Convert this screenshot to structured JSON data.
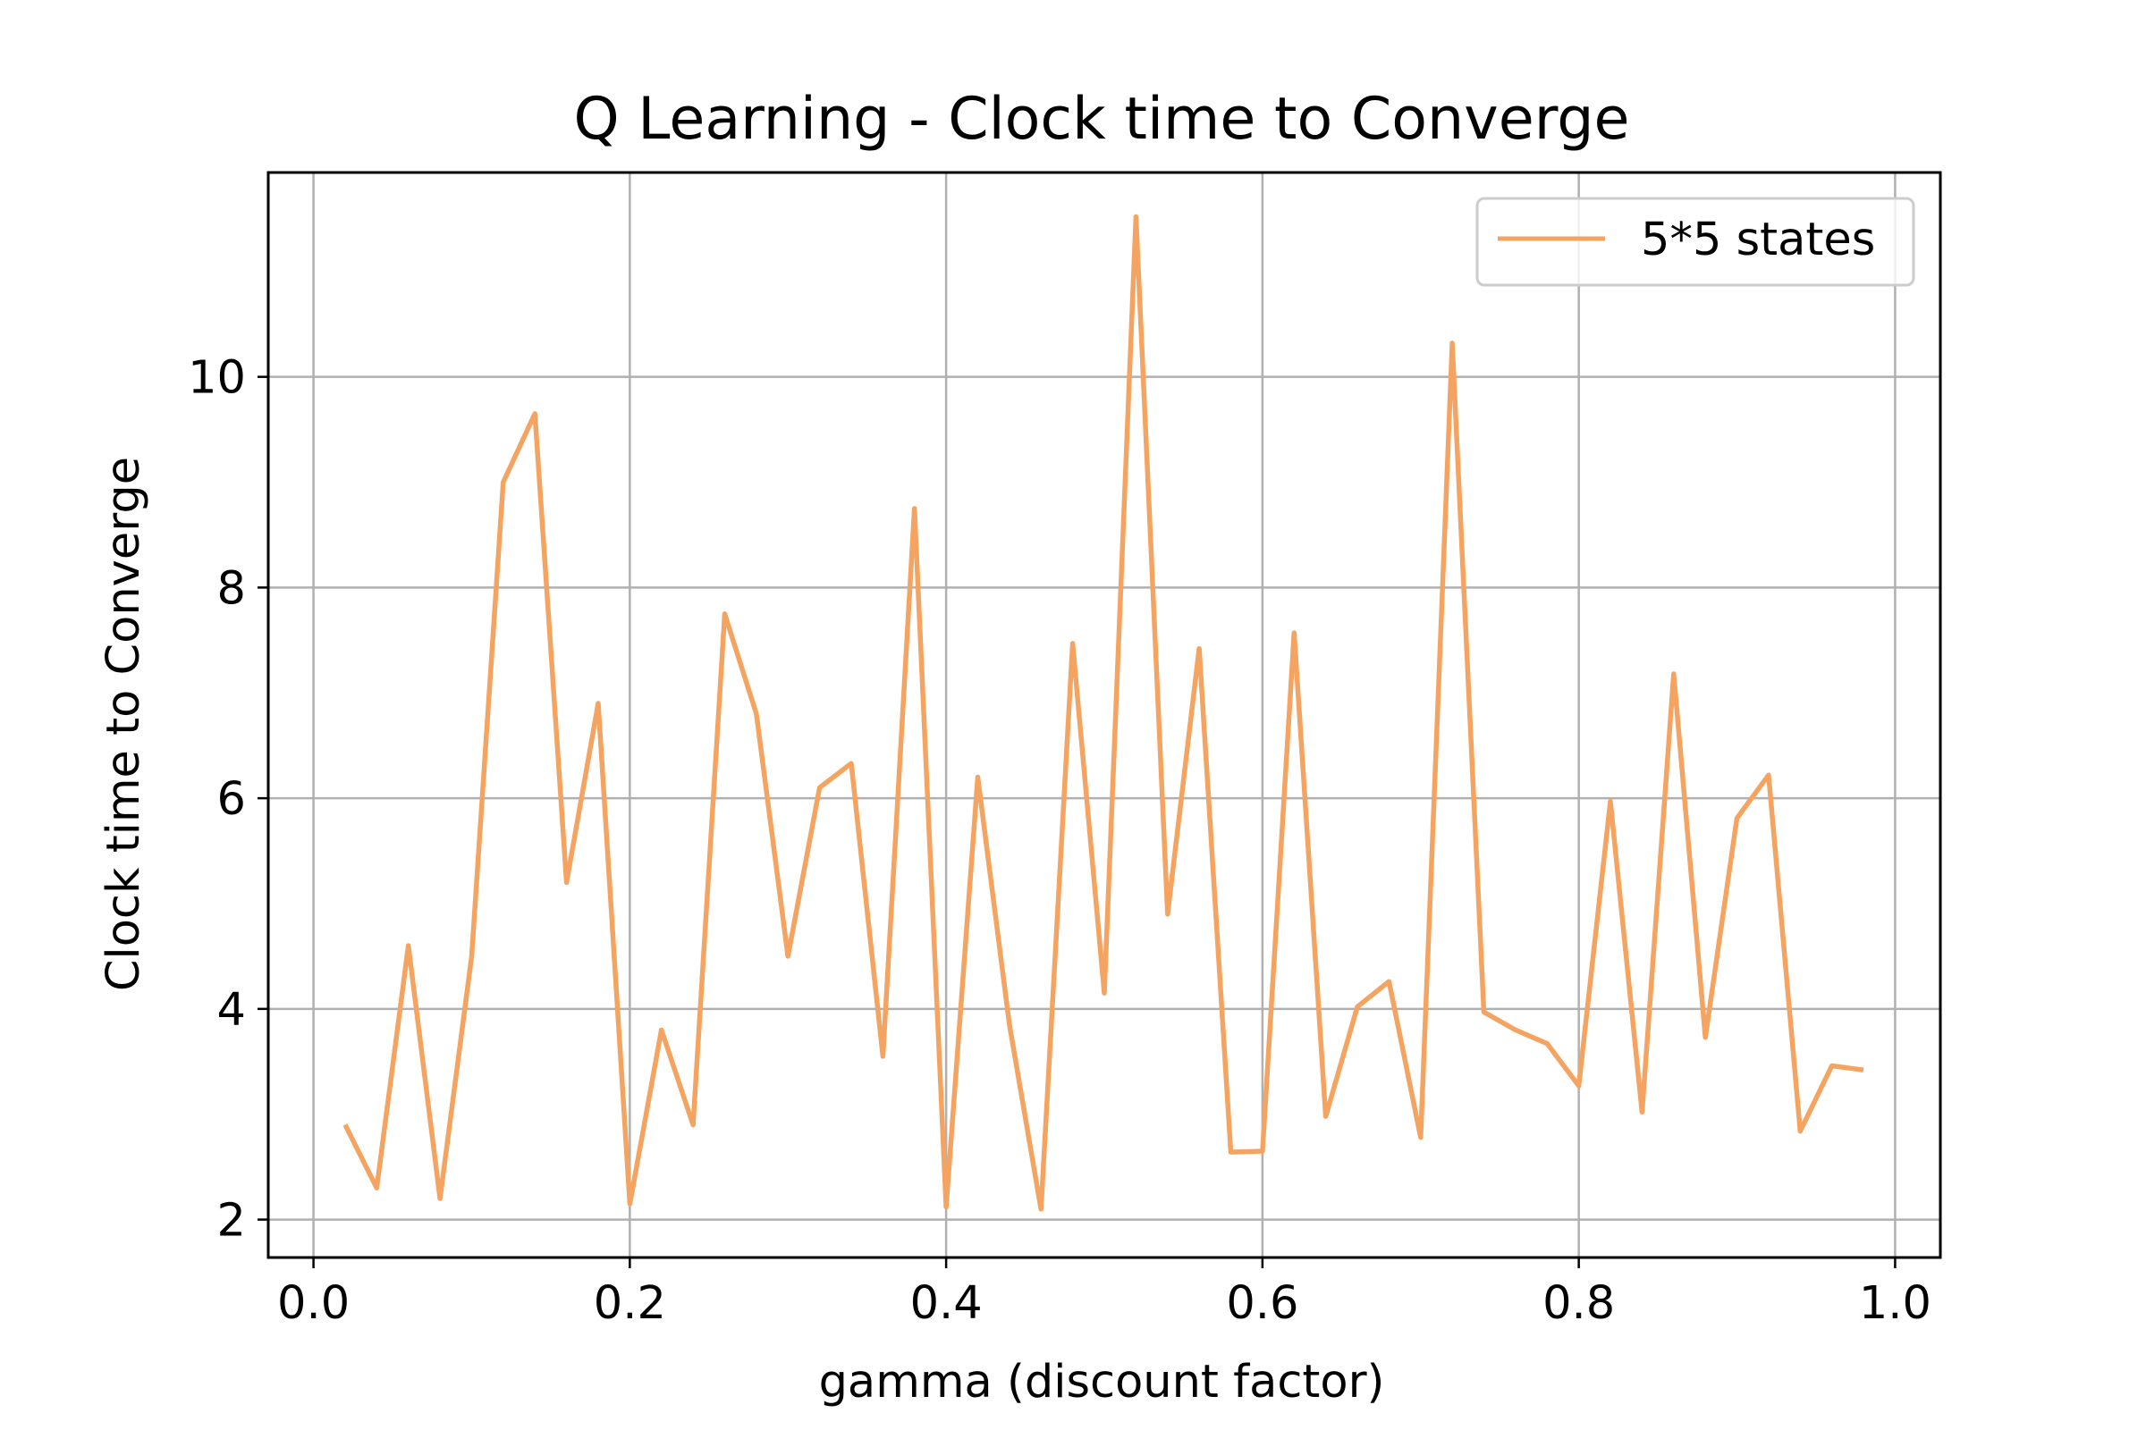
{
  "chart_data": {
    "type": "line",
    "title": "Q Learning - Clock time to Converge",
    "xlabel": "gamma (discount factor)",
    "ylabel": "Clock time to Converge",
    "xlim": [
      -0.0286,
      1.0286
    ],
    "ylim": [
      1.64,
      11.94
    ],
    "x_ticks": [
      0.0,
      0.2,
      0.4,
      0.6,
      0.8,
      1.0
    ],
    "x_tick_labels": [
      "0.0",
      "0.2",
      "0.4",
      "0.6",
      "0.8",
      "1.0"
    ],
    "y_ticks": [
      2,
      4,
      6,
      8,
      10
    ],
    "y_tick_labels": [
      "2",
      "4",
      "6",
      "8",
      "10"
    ],
    "grid": true,
    "legend_position": "top-right",
    "series": [
      {
        "name": "5*5 states",
        "color": "#f4a460",
        "x": [
          0.02,
          0.04,
          0.06,
          0.08,
          0.1,
          0.12,
          0.14,
          0.16,
          0.18,
          0.2,
          0.22,
          0.24,
          0.26,
          0.28,
          0.3,
          0.32,
          0.34,
          0.36,
          0.38,
          0.4,
          0.42,
          0.44,
          0.46,
          0.48,
          0.5,
          0.52,
          0.54,
          0.56,
          0.58,
          0.6,
          0.62,
          0.64,
          0.66,
          0.68,
          0.7,
          0.72,
          0.74,
          0.76,
          0.78,
          0.8,
          0.82,
          0.84,
          0.86,
          0.88,
          0.9,
          0.92,
          0.94,
          0.96,
          0.98
        ],
        "y": [
          2.9,
          2.3,
          4.6,
          2.2,
          4.5,
          9.0,
          9.65,
          5.2,
          6.9,
          2.15,
          3.8,
          2.9,
          7.75,
          6.8,
          4.5,
          6.1,
          6.33,
          3.55,
          8.75,
          2.12,
          6.2,
          3.85,
          2.1,
          7.47,
          4.15,
          11.52,
          4.9,
          7.42,
          2.64,
          2.65,
          7.57,
          2.98,
          4.02,
          4.26,
          2.78,
          10.32,
          3.97,
          3.8,
          3.67,
          3.27,
          5.97,
          3.02,
          7.18,
          3.73,
          5.81,
          6.22,
          2.84,
          3.46,
          3.42
        ]
      }
    ]
  }
}
